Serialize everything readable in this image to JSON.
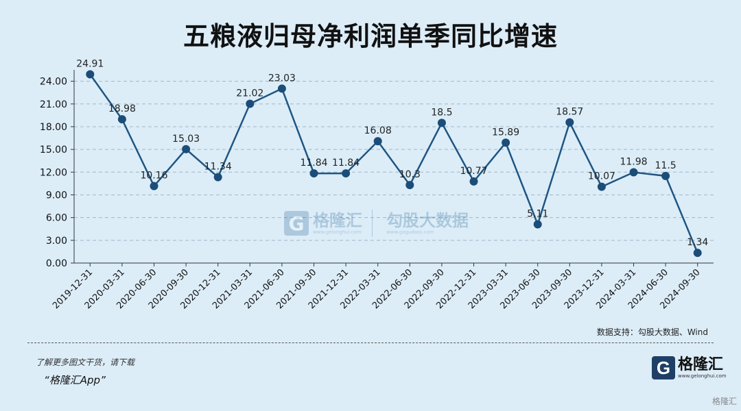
{
  "title": "五粮液归母净利润单季同比增速",
  "source": "数据支持：勾股大数据、Wind",
  "promo": {
    "line1": "了解更多图文干货，请下载",
    "line2": "“格隆汇App”"
  },
  "brand": {
    "mark": "G",
    "name": "格隆汇",
    "url": "www.gelonghui.com"
  },
  "corner_text": "格隆汇",
  "watermark": {
    "mark": "G",
    "name1": "格隆汇",
    "url1": "www.gelonghui.com",
    "name2": "勾股大数据",
    "url2": "www.gogudata.com"
  },
  "colors": {
    "line": "#1f5582",
    "marker": "#1b4d78",
    "grid": "#9fb6c8",
    "background": "#dcedf8"
  },
  "chart_data": {
    "type": "line",
    "title": "五粮液归母净利润单季同比增速",
    "categories": [
      "2019-12-31",
      "2020-03-31",
      "2020-06-30",
      "2020-09-30",
      "2020-12-31",
      "2021-03-31",
      "2021-06-30",
      "2021-09-30",
      "2021-12-31",
      "2022-03-31",
      "2022-06-30",
      "2022-09-30",
      "2022-12-31",
      "2023-03-31",
      "2023-06-30",
      "2023-09-30",
      "2023-12-31",
      "2024-03-31",
      "2024-06-30",
      "2024-09-30"
    ],
    "values": [
      24.91,
      18.98,
      10.16,
      15.03,
      11.34,
      21.02,
      23.03,
      11.84,
      11.84,
      16.08,
      10.3,
      18.5,
      10.77,
      15.89,
      5.11,
      18.57,
      10.07,
      11.98,
      11.5,
      1.34
    ],
    "value_labels": [
      "24.91",
      "18.98",
      "10.16",
      "15.03",
      "11.34",
      "21.02",
      "23.03",
      "11.84",
      "11.84",
      "16.08",
      "10.3",
      "18.5",
      "10.77",
      "15.89",
      "5.11",
      "18.57",
      "10.07",
      "11.98",
      "11.5",
      "1.34"
    ],
    "yticks": [
      "0.00",
      "3.00",
      "6.00",
      "9.00",
      "12.00",
      "15.00",
      "18.00",
      "21.00",
      "24.00"
    ],
    "ylim": [
      0,
      25.5
    ],
    "grid": true,
    "legend": "none"
  }
}
